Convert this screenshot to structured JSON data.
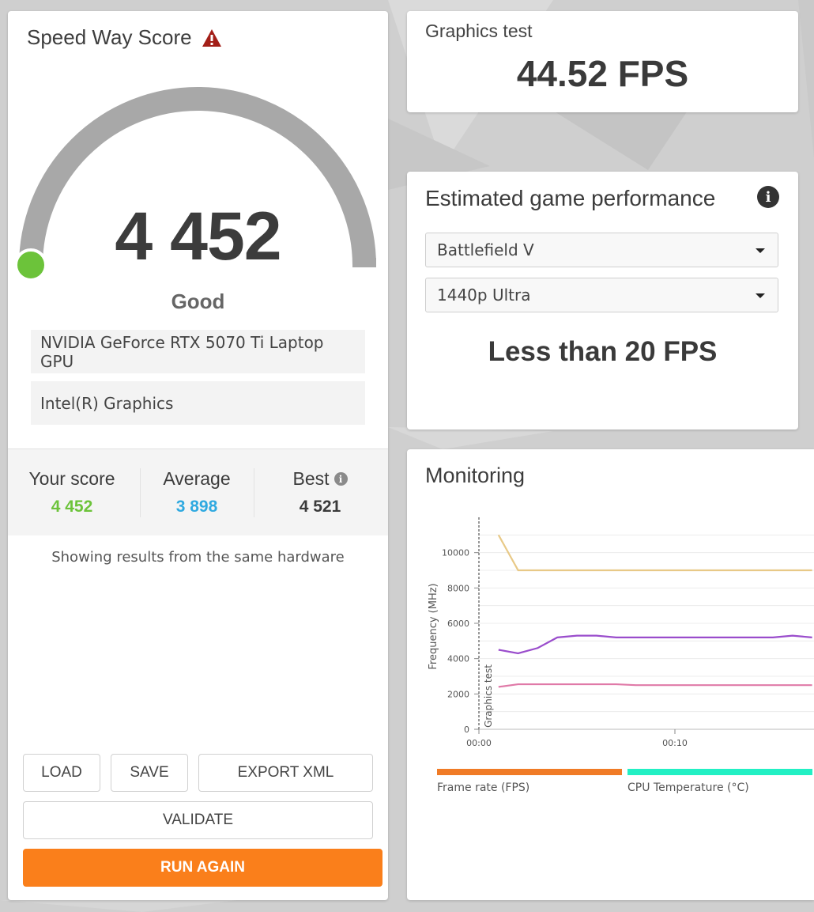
{
  "score_panel": {
    "title": "Speed Way Score",
    "warning_icon": "warning-triangle-icon",
    "score": "4 452",
    "score_numeric": 4452,
    "gauge_fill_fraction": 0.0,
    "rating": "Good",
    "hardware": [
      "NVIDIA GeForce RTX 5070 Ti Laptop GPU",
      "Intel(R) Graphics"
    ],
    "comparison": {
      "your_score_label": "Your score",
      "your_score": "4 452",
      "average_label": "Average",
      "average": "3 898",
      "best_label": "Best",
      "best": "4 521"
    },
    "note": "Showing results from the same hardware",
    "buttons": {
      "load": "LOAD",
      "save": "SAVE",
      "export_xml": "EXPORT XML",
      "validate": "VALIDATE",
      "run_again": "RUN AGAIN"
    }
  },
  "graphics_test": {
    "title": "Graphics test",
    "value": "44.52 FPS"
  },
  "estimate": {
    "title": "Estimated game performance",
    "game_select": "Battlefield V",
    "preset_select": "1440p Ultra",
    "result": "Less than 20 FPS"
  },
  "monitoring": {
    "title": "Monitoring",
    "legend": [
      "Frame rate (FPS)",
      "CPU Temperature (°C)"
    ]
  },
  "colors": {
    "accent_orange": "#fa7f1b",
    "your_score_green": "#6cc33a",
    "average_blue": "#2fa9e0",
    "warning_red": "#a31f18",
    "gauge_grey": "#a8a8a8",
    "legend_fps": "#f07b26",
    "legend_cpu_temp": "#22f0c4"
  },
  "chart_data": {
    "type": "line",
    "title": "",
    "ylabel": "Frequency (MHz)",
    "xlabel": "",
    "x_ticks": [
      "00:00",
      "00:10"
    ],
    "y_ticks": [
      0,
      2000,
      4000,
      6000,
      8000,
      10000
    ],
    "ylim": [
      0,
      12000
    ],
    "annotations": [
      "Graphics test"
    ],
    "x": [
      1,
      2,
      3,
      4,
      5,
      6,
      7,
      8,
      9,
      10,
      11,
      12,
      13,
      14,
      15,
      16,
      17
    ],
    "series": [
      {
        "color": "#e8c987",
        "values": [
          11000,
          9000,
          9000,
          9000,
          9000,
          9000,
          9000,
          9000,
          9000,
          9000,
          9000,
          9000,
          9000,
          9000,
          9000,
          9000,
          9000
        ]
      },
      {
        "color": "#9a4dcc",
        "values": [
          4500,
          4300,
          4600,
          5200,
          5300,
          5300,
          5200,
          5200,
          5200,
          5200,
          5200,
          5200,
          5200,
          5200,
          5200,
          5300,
          5200
        ]
      },
      {
        "color": "#e07aa8",
        "values": [
          2400,
          2550,
          2550,
          2550,
          2550,
          2550,
          2550,
          2500,
          2500,
          2500,
          2500,
          2500,
          2500,
          2500,
          2500,
          2500,
          2500
        ]
      }
    ]
  }
}
